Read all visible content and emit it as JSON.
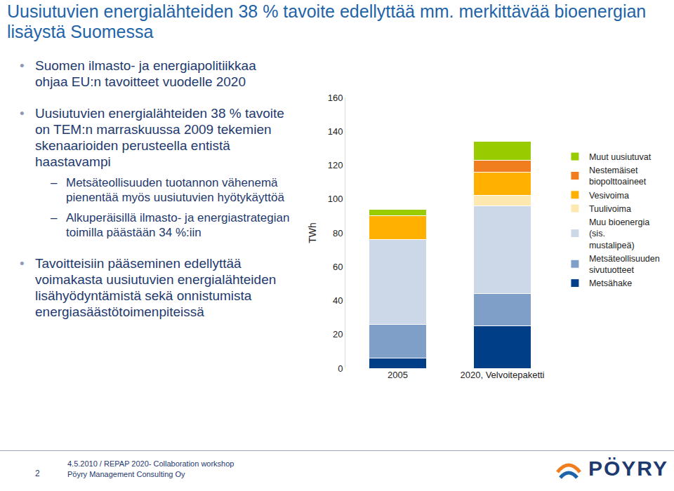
{
  "slide": {
    "title": "Uusiutuvien energialähteiden 38 % tavoite edellyttää mm. merkittävää bioenergian lisäystä Suomessa",
    "bullets": [
      {
        "text": "Suomen ilmasto- ja energiapolitiikkaa ohjaa EU:n tavoitteet vuodelle 2020",
        "sub": []
      },
      {
        "text": "Uusiutuvien energialähteiden 38 % tavoite on TEM:n marraskuussa 2009 tekemien skenaarioiden perusteella entistä haastavampi",
        "sub": [
          "Metsäteollisuuden tuotannon vähenemä pienentää myös uusiutuvien hyötykäyttöä",
          "Alkuperäisillä ilmasto- ja energiastrategian toimilla päästään 34 %:iin"
        ]
      },
      {
        "text": "Tavoitteisiin pääseminen edellyttää voimakasta uusiutuvien energialähteiden lisähyödyntämistä sekä onnistumista energiasäästötoimenpiteissä",
        "sub": []
      }
    ],
    "footer": {
      "page": "2",
      "event": "4.5.2010 / REPAP 2020- Collaboration workshop",
      "company": "Pöyry Management Consulting Oy",
      "logo": "PÖYRY"
    }
  },
  "chart_data": {
    "type": "bar",
    "stacked": true,
    "categories": [
      "2005",
      "2020, Velvoitepaketti"
    ],
    "y_label": "TWh",
    "ylim": [
      0,
      160
    ],
    "yticks": [
      0,
      20,
      40,
      60,
      80,
      100,
      120,
      140,
      160
    ],
    "grid": false,
    "legend": "right",
    "series": [
      {
        "name": "Metsähake",
        "color": "#003f87",
        "values": [
          6,
          25
        ]
      },
      {
        "name": "Metsäteollisuuden sivutuotteet",
        "color": "#7f9fc8",
        "values": [
          20,
          19
        ]
      },
      {
        "name": "Muu bioenergia (sis. mustalipeä)",
        "color": "#ccd8e8",
        "values": [
          50,
          52
        ]
      },
      {
        "name": "Tuulivoima",
        "color": "#fde8b0",
        "values": [
          0,
          6
        ]
      },
      {
        "name": "Vesivoima",
        "color": "#ffb000",
        "values": [
          14,
          14
        ]
      },
      {
        "name": "Nestemäiset biopolttoaineet",
        "color": "#f07d1e",
        "values": [
          0,
          7
        ]
      },
      {
        "name": "Muut uusiutuvat",
        "color": "#99cc00",
        "values": [
          4,
          11
        ]
      }
    ]
  }
}
